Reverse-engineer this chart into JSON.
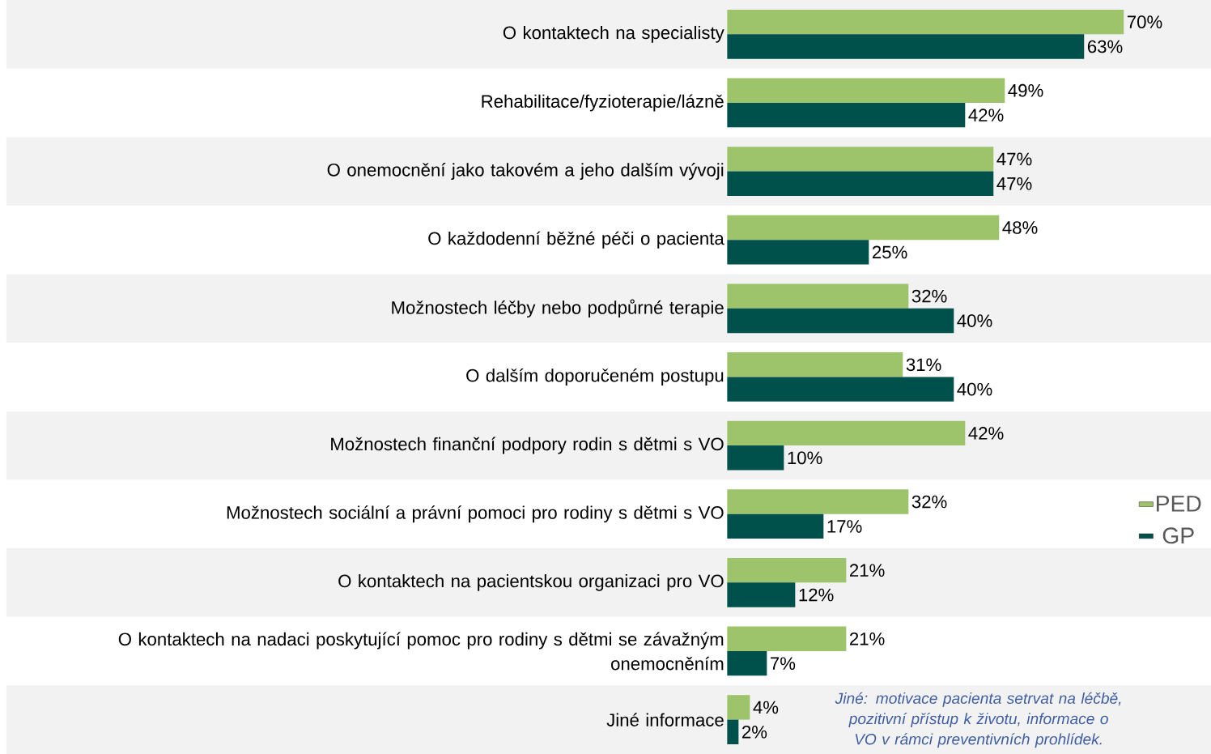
{
  "chart_data": {
    "type": "bar",
    "orientation": "horizontal",
    "legend": "right",
    "categories": [
      "O kontaktech na specialisty",
      "Rehabilitace/fyzioterapie/lázně",
      "O onemocnění jako takovém a jeho dalším vývoji",
      "O každodenní běžné péči o pacienta",
      "Možnostech léčby nebo podpůrné terapie",
      "O dalším doporučeném postupu",
      "Možnostech finanční podpory rodin s dětmi s VO",
      "Možnostech sociální a právní pomoci pro rodiny s dětmi s VO",
      "O kontaktech na pacientskou organizaci pro VO",
      "O kontaktech na nadaci poskytující pomoc pro rodiny s dětmi se závažným onemocněním",
      "Jiné informace"
    ],
    "series": [
      {
        "name": "PED",
        "color": "#9dc36b",
        "values": [
          70,
          49,
          47,
          48,
          32,
          31,
          42,
          32,
          21,
          21,
          4
        ],
        "value_labels": [
          "70%",
          "49%",
          "47%",
          "48%",
          "32%",
          "31%",
          "42%",
          "32%",
          "21%",
          "21%",
          "4%"
        ]
      },
      {
        "name": "GP",
        "color": "#00504b",
        "values": [
          63,
          42,
          47,
          25,
          40,
          40,
          10,
          17,
          12,
          7,
          2
        ],
        "value_labels": [
          "63%",
          "42%",
          "47%",
          "25%",
          "40%",
          "40%",
          "10%",
          "17%",
          "12%",
          "7%",
          "2%"
        ]
      }
    ],
    "annotations": [
      "Jiné: motivace pacienta setrvat na léčbě, pozitivní přístup k životu, informace o VO v rámci preventivních prohlídek."
    ]
  }
}
